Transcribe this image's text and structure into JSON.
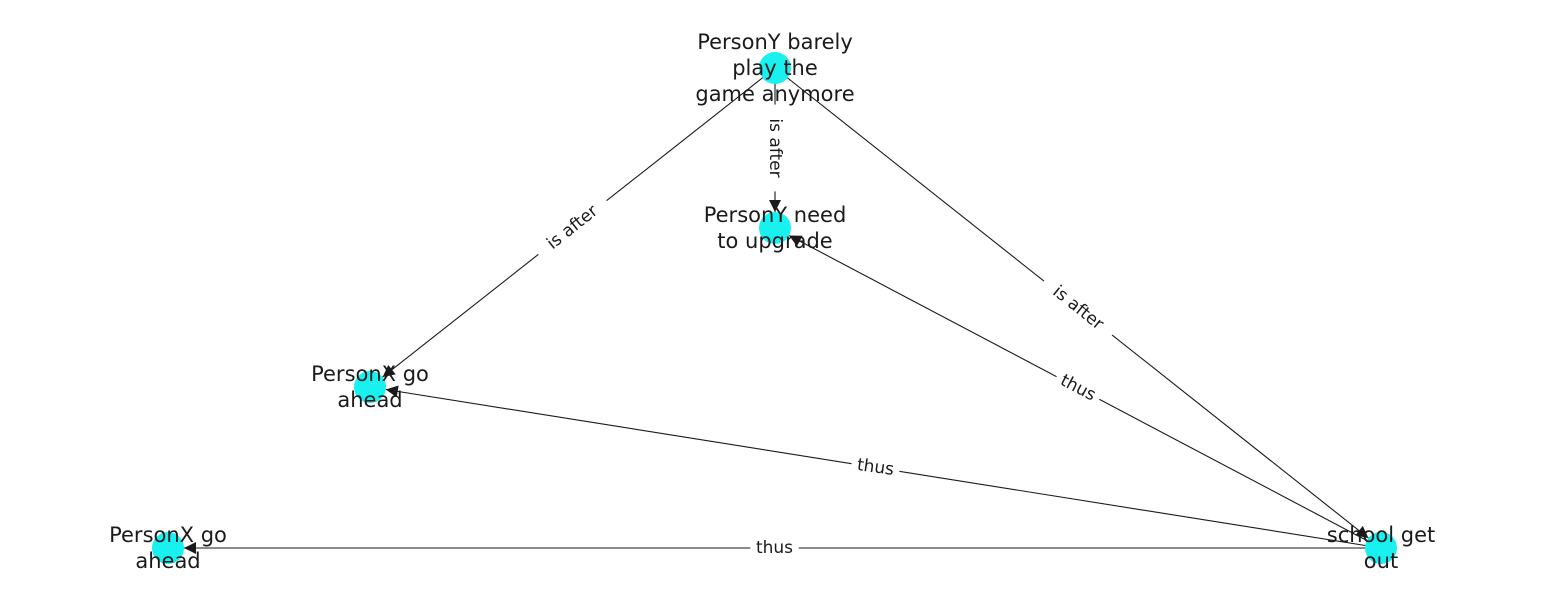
{
  "graph": {
    "node_color": "#19f0f0",
    "edge_color": "#1a1a1a",
    "nodes": [
      {
        "id": "n_barely",
        "lines": [
          "PersonY barely",
          "play the",
          "game anymore"
        ]
      },
      {
        "id": "n_upgrade",
        "lines": [
          "PersonY need",
          "to upgrade"
        ]
      },
      {
        "id": "n_goahead_mid",
        "lines": [
          "PersonX go",
          "ahead"
        ]
      },
      {
        "id": "n_goahead_left",
        "lines": [
          "PersonX go",
          "ahead"
        ]
      },
      {
        "id": "n_school",
        "lines": [
          "school get",
          "out"
        ]
      }
    ],
    "edges": [
      {
        "id": "e1",
        "source": "n_barely",
        "target": "n_upgrade",
        "label": "is after"
      },
      {
        "id": "e2",
        "source": "n_barely",
        "target": "n_goahead_mid",
        "label": "is after"
      },
      {
        "id": "e3",
        "source": "n_barely",
        "target": "n_school",
        "label": "is after"
      },
      {
        "id": "e4",
        "source": "n_school",
        "target": "n_upgrade",
        "label": "thus"
      },
      {
        "id": "e5",
        "source": "n_school",
        "target": "n_goahead_mid",
        "label": "thus"
      },
      {
        "id": "e6",
        "source": "n_school",
        "target": "n_goahead_left",
        "label": "thus"
      }
    ]
  }
}
